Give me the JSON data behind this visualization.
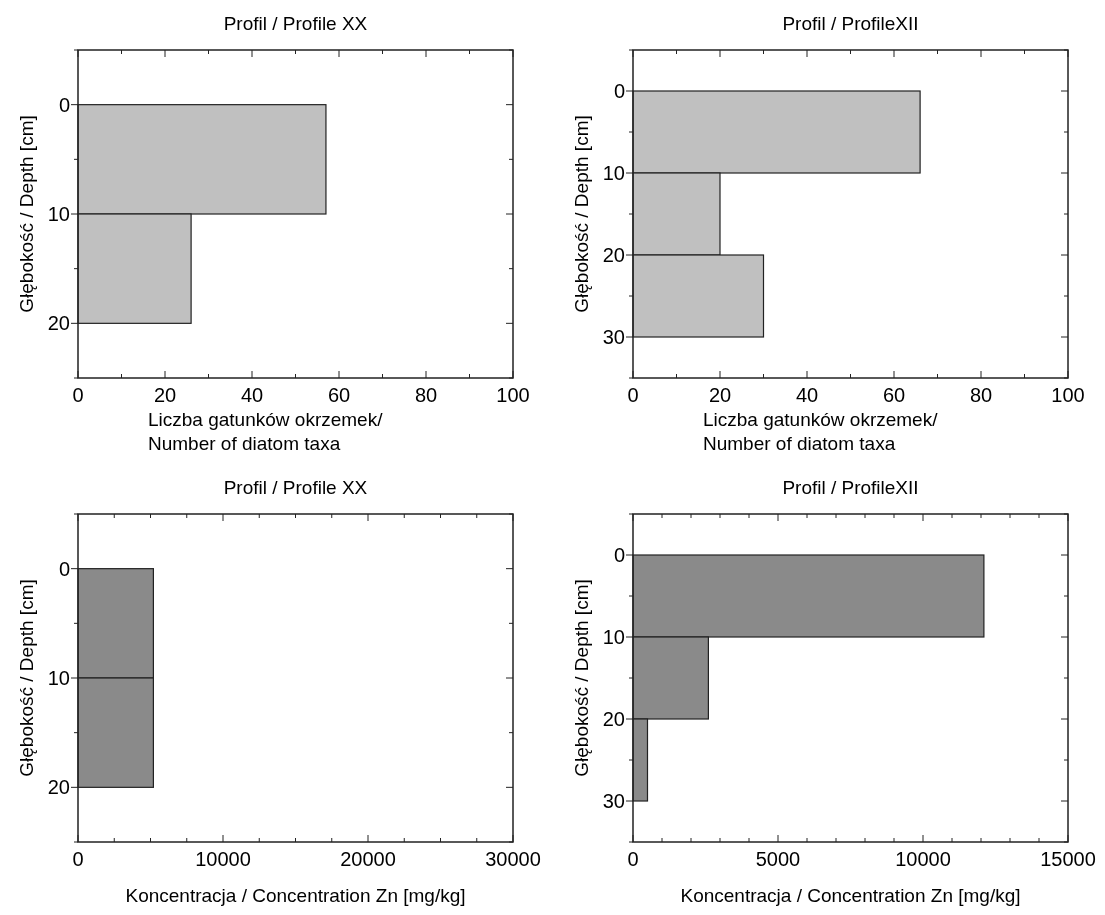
{
  "chart_data": [
    {
      "type": "histogram",
      "orientation": "horizontal",
      "title": "Profil / Profile XX",
      "xlabel": "Liczba gatunków okrzemek/\nNumber of diatom taxa",
      "ylabel": "Głębokość / Depth [cm]",
      "bins": [
        0,
        10,
        20
      ],
      "values": [
        57,
        26
      ],
      "color": "#c0c0c0",
      "xlim": [
        0,
        100
      ],
      "xticks": [
        0,
        {
          "value": 10,
          "label": null
        },
        20,
        {
          "value": 30,
          "label": null
        },
        40,
        {
          "value": 50,
          "label": null
        },
        60,
        {
          "value": 70,
          "label": null
        },
        80,
        {
          "value": 90,
          "label": null
        },
        100
      ],
      "ylim": [
        25,
        -5
      ],
      "yticks": [
        {
          "value": -5,
          "label": null
        },
        0,
        {
          "value": 5,
          "label": null
        },
        10,
        {
          "value": 15,
          "label": null
        },
        20,
        {
          "value": 25,
          "label": null
        }
      ]
    },
    {
      "type": "histogram",
      "orientation": "horizontal",
      "title": "Profil / ProfileXII",
      "xlabel": "Liczba gatunków okrzemek/\nNumber of diatom taxa",
      "ylabel": "Głębokość / Depth [cm]",
      "bins": [
        0,
        10,
        20,
        30
      ],
      "values": [
        66,
        20,
        30
      ],
      "color": "#c0c0c0",
      "xlim": [
        0,
        100
      ],
      "xticks": [
        0,
        {
          "value": 10,
          "label": null
        },
        20,
        {
          "value": 30,
          "label": null
        },
        40,
        {
          "value": 50,
          "label": null
        },
        60,
        {
          "value": 70,
          "label": null
        },
        80,
        {
          "value": 90,
          "label": null
        },
        100
      ],
      "ylim": [
        35,
        -5
      ],
      "yticks": [
        {
          "value": -5,
          "label": null
        },
        0,
        {
          "value": 5,
          "label": null
        },
        10,
        {
          "value": 15,
          "label": null
        },
        20,
        {
          "value": 25,
          "label": null
        },
        30,
        {
          "value": 35,
          "label": null
        }
      ]
    },
    {
      "type": "histogram",
      "orientation": "horizontal",
      "title": "Profil / Profile XX",
      "xlabel": "Koncentracja / Concentration Zn [mg/kg]",
      "ylabel": "Głębokość / Depth [cm]",
      "bins": [
        0,
        10,
        20
      ],
      "values": [
        5200,
        5200
      ],
      "color": "#8a8a8a",
      "xlim": [
        0,
        30000
      ],
      "xticks": [
        0,
        {
          "value": 2500,
          "label": null
        },
        {
          "value": 5000,
          "label": null
        },
        {
          "value": 7500,
          "label": null
        },
        10000,
        {
          "value": 12500,
          "label": null
        },
        {
          "value": 15000,
          "label": null
        },
        {
          "value": 17500,
          "label": null
        },
        20000,
        {
          "value": 22500,
          "label": null
        },
        {
          "value": 25000,
          "label": null
        },
        {
          "value": 27500,
          "label": null
        },
        30000
      ],
      "ylim": [
        25,
        -5
      ],
      "yticks": [
        {
          "value": -5,
          "label": null
        },
        0,
        {
          "value": 5,
          "label": null
        },
        10,
        {
          "value": 15,
          "label": null
        },
        20,
        {
          "value": 25,
          "label": null
        }
      ]
    },
    {
      "type": "histogram",
      "orientation": "horizontal",
      "title": "Profil / ProfileXII",
      "xlabel": "Koncentracja / Concentration Zn [mg/kg]",
      "ylabel": "Głębokość / Depth [cm]",
      "bins": [
        0,
        10,
        20,
        30
      ],
      "values": [
        12100,
        2600,
        500
      ],
      "color": "#8a8a8a",
      "xlim": [
        0,
        15000
      ],
      "xticks": [
        0,
        {
          "value": 1000,
          "label": null
        },
        {
          "value": 2000,
          "label": null
        },
        {
          "value": 3000,
          "label": null
        },
        {
          "value": 4000,
          "label": null
        },
        5000,
        {
          "value": 6000,
          "label": null
        },
        {
          "value": 7000,
          "label": null
        },
        {
          "value": 8000,
          "label": null
        },
        {
          "value": 9000,
          "label": null
        },
        10000,
        {
          "value": 11000,
          "label": null
        },
        {
          "value": 12000,
          "label": null
        },
        {
          "value": 13000,
          "label": null
        },
        {
          "value": 14000,
          "label": null
        },
        15000
      ],
      "ylim": [
        35,
        -5
      ],
      "yticks": [
        {
          "value": -5,
          "label": null
        },
        0,
        {
          "value": 5,
          "label": null
        },
        10,
        {
          "value": 15,
          "label": null
        },
        20,
        {
          "value": 25,
          "label": null
        },
        30,
        {
          "value": 35,
          "label": null
        }
      ]
    }
  ]
}
